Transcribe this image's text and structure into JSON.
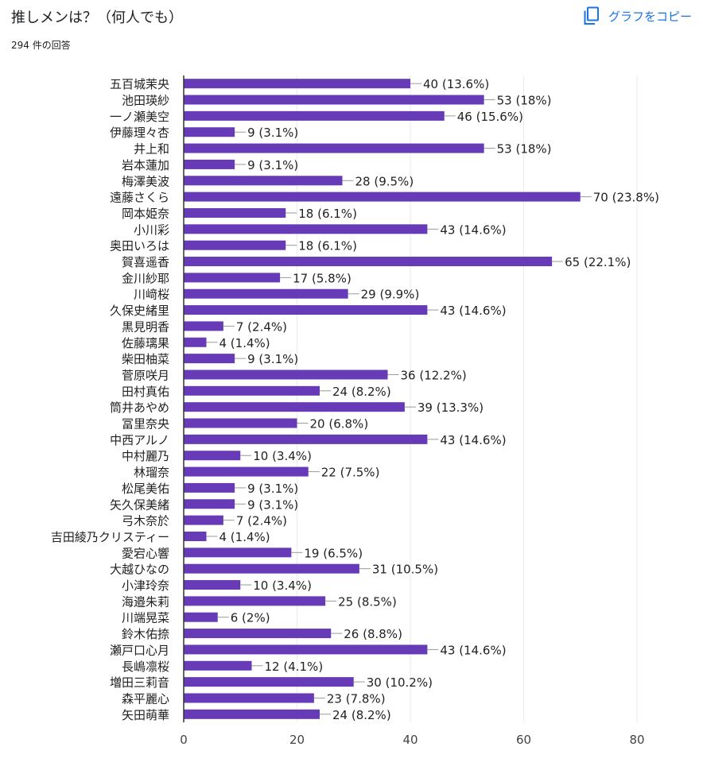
{
  "header": {
    "title": "推しメンは？（何人でも）",
    "response_count": "294 件の回答",
    "copy_chart_label": "グラフをコピー",
    "copy_icon": "copy-icon"
  },
  "colors": {
    "bar": "#673ab7",
    "accent": "#1a73e8",
    "grid": "#ebebeb",
    "axis": "#333333",
    "label": "#222222"
  },
  "chart_data": {
    "type": "bar",
    "orientation": "horizontal",
    "categories": [
      "五百城茉央",
      "池田瑛紗",
      "一ノ瀬美空",
      "伊藤理々杏",
      "井上和",
      "岩本蓮加",
      "梅澤美波",
      "遠藤さくら",
      "岡本姫奈",
      "小川彩",
      "奥田いろは",
      "賀喜遥香",
      "金川紗耶",
      "川﨑桜",
      "久保史緒里",
      "黒見明香",
      "佐藤璃果",
      "柴田柚菜",
      "菅原咲月",
      "田村真佑",
      "筒井あやめ",
      "冨里奈央",
      "中西アルノ",
      "中村麗乃",
      "林瑠奈",
      "松尾美佑",
      "矢久保美緒",
      "弓木奈於",
      "吉田綾乃クリスティー",
      "愛宕心響",
      "大越ひなの",
      "小津玲奈",
      "海邉朱莉",
      "川端晃菜",
      "鈴木佑捺",
      "瀬戸口心月",
      "長嶋凛桜",
      "増田三莉音",
      "森平麗心",
      "矢田萌華"
    ],
    "values": [
      40,
      53,
      46,
      9,
      53,
      9,
      28,
      70,
      18,
      43,
      18,
      65,
      17,
      29,
      43,
      7,
      4,
      9,
      36,
      24,
      39,
      20,
      43,
      10,
      22,
      9,
      9,
      7,
      4,
      19,
      31,
      10,
      25,
      6,
      26,
      43,
      12,
      30,
      23,
      24
    ],
    "value_labels": [
      "40 (13.6%)",
      "53 (18%)",
      "46 (15.6%)",
      "9 (3.1%)",
      "53 (18%)",
      "9 (3.1%)",
      "28 (9.5%)",
      "70 (23.8%)",
      "18 (6.1%)",
      "43 (14.6%)",
      "18 (6.1%)",
      "65 (22.1%)",
      "17 (5.8%)",
      "29 (9.9%)",
      "43 (14.6%)",
      "7 (2.4%)",
      "4 (1.4%)",
      "9 (3.1%)",
      "36 (12.2%)",
      "24 (8.2%)",
      "39 (13.3%)",
      "20 (6.8%)",
      "43 (14.6%)",
      "10 (3.4%)",
      "22 (7.5%)",
      "9 (3.1%)",
      "9 (3.1%)",
      "7 (2.4%)",
      "4 (1.4%)",
      "19 (6.5%)",
      "31 (10.5%)",
      "10 (3.4%)",
      "25 (8.5%)",
      "6 (2%)",
      "26 (8.8%)",
      "43 (14.6%)",
      "12 (4.1%)",
      "30 (10.2%)",
      "23 (7.8%)",
      "24 (8.2%)"
    ],
    "xlim": [
      0,
      80
    ],
    "xticks": [
      0,
      20,
      40,
      60,
      80
    ],
    "xtick_labels": [
      "0",
      "20",
      "40",
      "60",
      "80"
    ],
    "grid": true,
    "legend": "none"
  }
}
